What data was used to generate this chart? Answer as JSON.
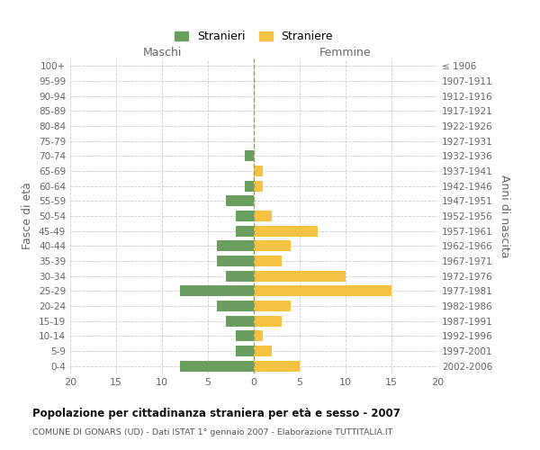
{
  "age_groups": [
    "0-4",
    "5-9",
    "10-14",
    "15-19",
    "20-24",
    "25-29",
    "30-34",
    "35-39",
    "40-44",
    "45-49",
    "50-54",
    "55-59",
    "60-64",
    "65-69",
    "70-74",
    "75-79",
    "80-84",
    "85-89",
    "90-94",
    "95-99",
    "100+"
  ],
  "birth_years": [
    "2002-2006",
    "1997-2001",
    "1992-1996",
    "1987-1991",
    "1982-1986",
    "1977-1981",
    "1972-1976",
    "1967-1971",
    "1962-1966",
    "1957-1961",
    "1952-1956",
    "1947-1951",
    "1942-1946",
    "1937-1941",
    "1932-1936",
    "1927-1931",
    "1922-1926",
    "1917-1921",
    "1912-1916",
    "1907-1911",
    "≤ 1906"
  ],
  "maschi": [
    8,
    2,
    2,
    3,
    4,
    8,
    3,
    4,
    4,
    2,
    2,
    3,
    1,
    0,
    1,
    0,
    0,
    0,
    0,
    0,
    0
  ],
  "femmine": [
    5,
    2,
    1,
    3,
    4,
    15,
    10,
    3,
    4,
    7,
    2,
    0,
    1,
    1,
    0,
    0,
    0,
    0,
    0,
    0,
    0
  ],
  "color_maschi": "#6a9e5f",
  "color_femmine": "#f5c242",
  "title": "Popolazione per cittadinanza straniera per età e sesso - 2007",
  "subtitle": "COMUNE DI GONARS (UD) - Dati ISTAT 1° gennaio 2007 - Elaborazione TUTTITALIA.IT",
  "ylabel_left": "Fasce di età",
  "ylabel_right": "Anni di nascita",
  "xlabel_maschi": "Maschi",
  "xlabel_femmine": "Femmine",
  "legend_maschi": "Stranieri",
  "legend_femmine": "Straniere",
  "xlim": 20,
  "background_color": "#ffffff",
  "grid_color": "#cccccc",
  "bar_height": 0.72
}
